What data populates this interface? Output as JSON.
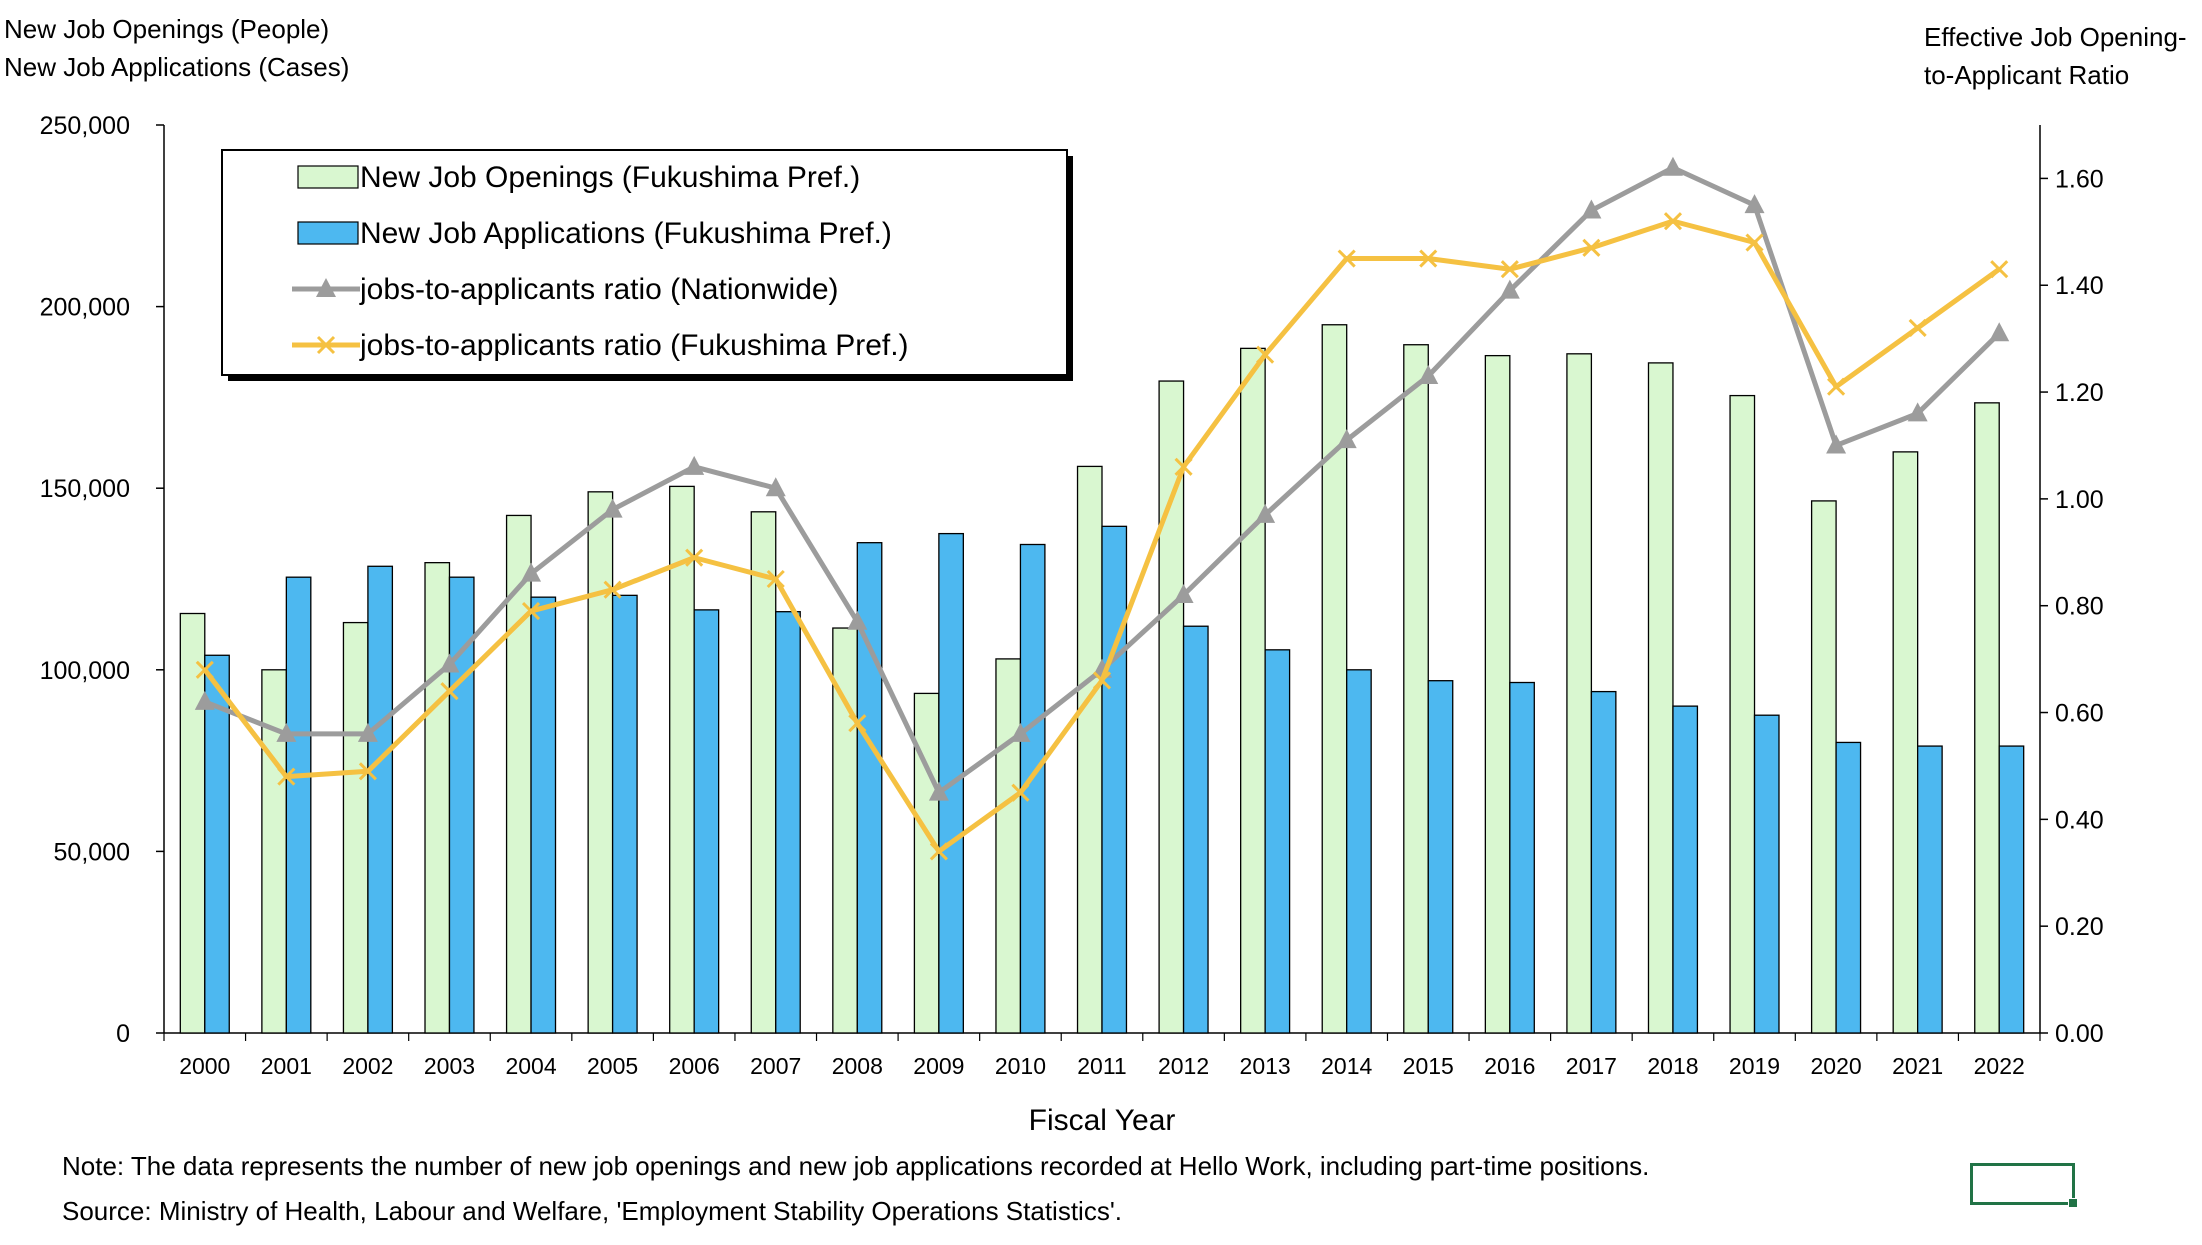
{
  "chart_data": {
    "type": "bar",
    "y_left_title": [
      "New Job Openings (People)",
      "New Job Applications (Cases)"
    ],
    "y_right_title": [
      "Effective Job Opening-",
      "to-Applicant Ratio"
    ],
    "xlabel": "Fiscal Year",
    "categories": [
      "2000",
      "2001",
      "2002",
      "2003",
      "2004",
      "2005",
      "2006",
      "2007",
      "2008",
      "2009",
      "2010",
      "2011",
      "2012",
      "2013",
      "2014",
      "2015",
      "2016",
      "2017",
      "2018",
      "2019",
      "2020",
      "2021",
      "2022"
    ],
    "ylim_left": [
      0,
      250000
    ],
    "ylim_right": [
      0,
      1.7
    ],
    "left_ticks": [
      "0",
      "50,000",
      "100,000",
      "150,000",
      "200,000",
      "250,000"
    ],
    "right_ticks": [
      "0.00",
      "0.20",
      "0.40",
      "0.60",
      "0.80",
      "1.00",
      "1.20",
      "1.40",
      "1.60"
    ],
    "grid": false,
    "legend_position": "top-left",
    "series": [
      {
        "name": "New Job Openings (Fukushima Pref.)",
        "kind": "bar",
        "axis": "left",
        "color": "#d9f7d0",
        "values": [
          115500,
          100000,
          113000,
          129500,
          142500,
          149000,
          150500,
          143500,
          111500,
          93500,
          103000,
          156000,
          179500,
          188500,
          195000,
          189500,
          186500,
          187000,
          184500,
          175500,
          146500,
          160000,
          173500
        ]
      },
      {
        "name": "New Job Applications (Fukushima Pref.)",
        "kind": "bar",
        "axis": "left",
        "color": "#4db8f0",
        "values": [
          104000,
          125500,
          128500,
          125500,
          120000,
          120500,
          116500,
          116000,
          135000,
          137500,
          134500,
          139500,
          112000,
          105500,
          100000,
          97000,
          96500,
          94000,
          90000,
          87500,
          80000,
          79000,
          79000
        ]
      },
      {
        "name": "jobs-to-applicants ratio (Nationwide)",
        "kind": "line",
        "marker": "triangle",
        "axis": "right",
        "color": "#9c9c9c",
        "values": [
          0.62,
          0.56,
          0.56,
          0.69,
          0.86,
          0.98,
          1.06,
          1.02,
          0.77,
          0.45,
          0.56,
          0.68,
          0.82,
          0.97,
          1.11,
          1.23,
          1.39,
          1.54,
          1.62,
          1.55,
          1.1,
          1.16,
          1.31
        ]
      },
      {
        "name": "jobs-to-applicants ratio (Fukushima Pref.)",
        "kind": "line",
        "marker": "x",
        "axis": "right",
        "color": "#f5c142",
        "values": [
          0.68,
          0.48,
          0.49,
          0.64,
          0.79,
          0.83,
          0.89,
          0.85,
          0.58,
          0.34,
          0.45,
          0.66,
          1.06,
          1.27,
          1.45,
          1.45,
          1.43,
          1.47,
          1.52,
          1.48,
          1.21,
          1.32,
          1.43
        ]
      }
    ]
  },
  "notes": {
    "note": "Note: The data represents the number of new job openings and new job applications recorded at Hello Work, including part-time positions.",
    "source": "Source: Ministry of Health, Labour and Welfare, 'Employment Stability Operations Statistics'."
  }
}
